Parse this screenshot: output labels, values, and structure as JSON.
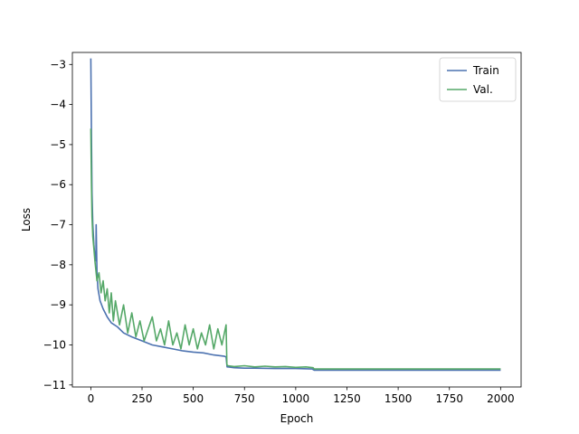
{
  "chart_data": {
    "type": "line",
    "title": "",
    "xlabel": "Epoch",
    "ylabel": "Loss",
    "xlim": [
      -90,
      2100
    ],
    "ylim": [
      -11.05,
      -2.7
    ],
    "grid": false,
    "legend_position": "top-right",
    "xticks": [
      0,
      250,
      500,
      750,
      1000,
      1250,
      1500,
      1750,
      2000
    ],
    "xtick_labels": [
      "0",
      "250",
      "500",
      "750",
      "1000",
      "1250",
      "1500",
      "1750",
      "2000"
    ],
    "yticks": [
      -3,
      -4,
      -5,
      -6,
      -7,
      -8,
      -9,
      -10,
      -11
    ],
    "ytick_labels": [
      "−3",
      "−4",
      "−5",
      "−6",
      "−7",
      "−8",
      "−9",
      "−10",
      "−11"
    ],
    "series": [
      {
        "name": "Train",
        "color": "#4c72b0",
        "x": [
          0,
          3,
          6,
          10,
          15,
          20,
          25,
          26,
          30,
          35,
          45,
          60,
          80,
          100,
          130,
          160,
          200,
          250,
          300,
          350,
          400,
          450,
          500,
          550,
          600,
          650,
          660,
          665,
          670,
          700,
          750,
          800,
          900,
          1000,
          1080,
          1090,
          1200,
          1400,
          1600,
          1800,
          2000
        ],
        "y": [
          -2.85,
          -4.8,
          -6.2,
          -7.0,
          -7.5,
          -7.8,
          -7.9,
          -7.0,
          -8.2,
          -8.6,
          -8.9,
          -9.1,
          -9.3,
          -9.45,
          -9.55,
          -9.7,
          -9.8,
          -9.9,
          -10.0,
          -10.05,
          -10.1,
          -10.15,
          -10.18,
          -10.2,
          -10.25,
          -10.28,
          -10.3,
          -10.55,
          -10.55,
          -10.57,
          -10.58,
          -10.58,
          -10.59,
          -10.59,
          -10.6,
          -10.63,
          -10.63,
          -10.63,
          -10.63,
          -10.63,
          -10.63
        ]
      },
      {
        "name": "Val.",
        "color": "#55a868",
        "x": [
          0,
          3,
          6,
          10,
          15,
          20,
          30,
          40,
          50,
          60,
          70,
          80,
          90,
          100,
          110,
          120,
          140,
          160,
          180,
          200,
          220,
          240,
          260,
          280,
          300,
          320,
          340,
          360,
          380,
          400,
          420,
          440,
          460,
          480,
          500,
          520,
          540,
          560,
          580,
          600,
          620,
          640,
          660,
          664,
          670,
          700,
          750,
          800,
          850,
          900,
          950,
          1000,
          1050,
          1085,
          1090,
          1200,
          1400,
          1600,
          1800,
          2000
        ],
        "y": [
          -4.6,
          -6.0,
          -6.8,
          -7.3,
          -7.6,
          -7.9,
          -8.4,
          -8.2,
          -8.7,
          -8.4,
          -8.9,
          -8.6,
          -9.2,
          -8.7,
          -9.4,
          -8.9,
          -9.5,
          -9.0,
          -9.7,
          -9.2,
          -9.8,
          -9.4,
          -9.9,
          -9.6,
          -9.3,
          -9.9,
          -9.6,
          -10.0,
          -9.4,
          -10.0,
          -9.7,
          -10.1,
          -9.5,
          -10.0,
          -9.6,
          -10.1,
          -9.7,
          -10.0,
          -9.5,
          -10.1,
          -9.6,
          -10.0,
          -9.5,
          -10.5,
          -10.52,
          -10.54,
          -10.52,
          -10.55,
          -10.53,
          -10.55,
          -10.54,
          -10.56,
          -10.55,
          -10.57,
          -10.6,
          -10.6,
          -10.6,
          -10.6,
          -10.6,
          -10.6
        ]
      }
    ]
  }
}
